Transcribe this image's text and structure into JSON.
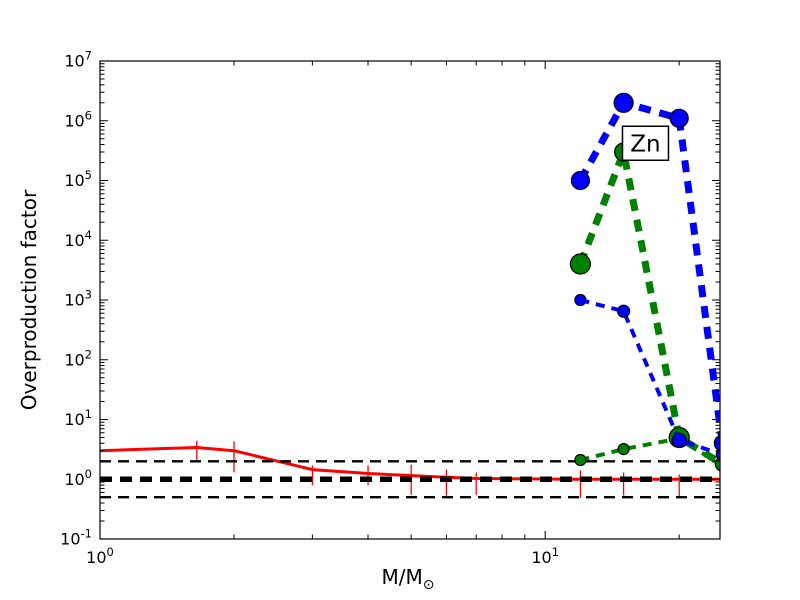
{
  "figure": {
    "background": "#ffffff"
  },
  "chart_data": {
    "type": "line",
    "title": "",
    "xlabel": "M/M",
    "xlabel_sub": "⊙",
    "ylabel": "Overproduction factor",
    "x_scale": "log",
    "y_scale": "log",
    "xlim": [
      1,
      24.7
    ],
    "ylim": [
      0.1,
      10000000
    ],
    "grid": false,
    "legend": "none",
    "x_major_tick_exponents": [
      0,
      1
    ],
    "x_minor_ticks": [
      2,
      3,
      4,
      5,
      6,
      7,
      8,
      9,
      20
    ],
    "y_major_tick_exponents": [
      -1,
      0,
      1,
      2,
      3,
      4,
      5,
      6,
      7
    ],
    "annotation": {
      "text": "Zn",
      "x": 16.8,
      "y": 420000
    },
    "reference_lines": [
      {
        "name": "factor-two-upper",
        "y": 2,
        "color": "#000000",
        "linewidth": 2.4,
        "dash": [
          11,
          7
        ],
        "zorder": 2
      },
      {
        "name": "unity",
        "y": 1,
        "color": "#000000",
        "linewidth": 5.5,
        "dash": [
          12,
          8
        ],
        "zorder": 2
      },
      {
        "name": "factor-two-lower",
        "y": 0.5,
        "color": "#000000",
        "linewidth": 2.4,
        "dash": [
          11,
          7
        ],
        "zorder": 2
      }
    ],
    "series": [
      {
        "name": "low-mass-agb-red",
        "color": "#ff0000",
        "style": "solid",
        "linewidth": 3,
        "zorder": 1,
        "marker": "none",
        "x": [
          1,
          1.65,
          2,
          3,
          4,
          5,
          6,
          7,
          12,
          15,
          20,
          25
        ],
        "y": [
          3.0,
          3.4,
          3.0,
          1.45,
          1.25,
          1.15,
          1.08,
          1.03,
          1.0,
          1.0,
          1.0,
          1.0
        ],
        "err_lo": [
          null,
          2.1,
          1.3,
          0.8,
          0.8,
          0.55,
          0.53,
          0.55,
          0.49,
          0.53,
          0.49,
          null
        ],
        "err_hi": [
          null,
          4.4,
          4.3,
          1.7,
          1.7,
          1.75,
          1.45,
          1.3,
          1.4,
          1.3,
          1.2,
          null
        ]
      },
      {
        "name": "massive-green-thin",
        "color": "#008000",
        "style": "dashed",
        "linewidth": 4,
        "dash": [
          9,
          7
        ],
        "zorder": 3,
        "marker": "circle",
        "x": [
          12,
          15,
          20,
          25
        ],
        "y": [
          2.1,
          3.2,
          4.8,
          1.7
        ],
        "marker_r": [
          5.5,
          5.5,
          6,
          6
        ]
      },
      {
        "name": "massive-green-thick",
        "color": "#008000",
        "style": "dashed",
        "linewidth": 7,
        "dash": [
          12,
          9
        ],
        "zorder": 4,
        "marker": "circle",
        "x": [
          12,
          15,
          20,
          25
        ],
        "y": [
          4000,
          300000,
          5.0,
          1.8
        ],
        "marker_r": [
          10,
          9,
          10,
          7
        ]
      },
      {
        "name": "massive-blue-thin",
        "color": "#0000ff",
        "style": "dashed",
        "linewidth": 4,
        "dash": [
          9,
          7
        ],
        "zorder": 5,
        "marker": "circle",
        "x": [
          12,
          15,
          20,
          25
        ],
        "y": [
          1000,
          650,
          4.5,
          2.6
        ],
        "marker_r": [
          5.5,
          6,
          7,
          6
        ]
      },
      {
        "name": "massive-blue-thick",
        "color": "#0000ff",
        "style": "dashed",
        "linewidth": 7,
        "dash": [
          12,
          9
        ],
        "zorder": 6,
        "marker": "circle",
        "x": [
          12,
          15,
          20,
          25
        ],
        "y": [
          100000,
          2000000,
          1100000,
          4.0
        ],
        "marker_r": [
          9,
          9.5,
          9,
          8
        ]
      }
    ]
  }
}
